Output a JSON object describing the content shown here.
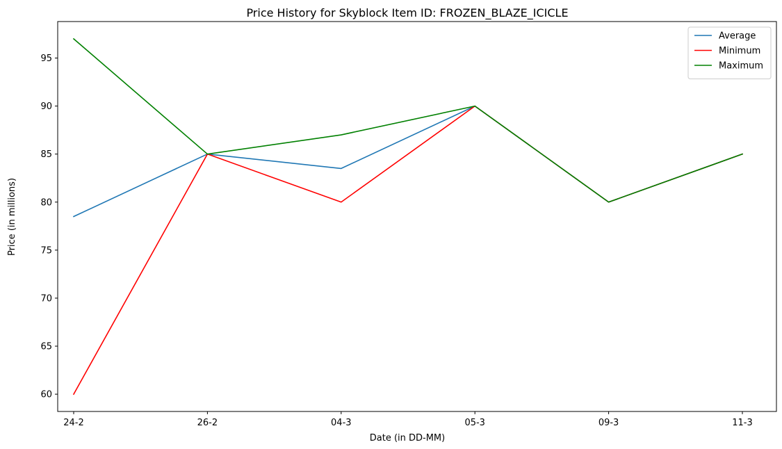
{
  "chart_data": {
    "type": "line",
    "title": "Price History for Skyblock Item ID: FROZEN_BLAZE_ICICLE",
    "xlabel": "Date (in DD-MM)",
    "ylabel": "Price (in millions)",
    "categories": [
      "24-2",
      "26-2",
      "04-3",
      "05-3",
      "09-3",
      "11-3"
    ],
    "ylim": [
      58.2,
      98.8
    ],
    "yticks": [
      60,
      65,
      70,
      75,
      80,
      85,
      90,
      95
    ],
    "grid": false,
    "legend_position": "top-right",
    "series": [
      {
        "name": "Average",
        "color": "#1f77b4",
        "values": [
          78.5,
          85,
          83.5,
          90,
          80,
          85
        ]
      },
      {
        "name": "Minimum",
        "color": "#ff0000",
        "values": [
          60,
          85,
          80,
          90,
          80,
          85
        ]
      },
      {
        "name": "Maximum",
        "color": "#008000",
        "values": [
          97,
          85,
          87,
          90,
          80,
          85
        ]
      }
    ]
  }
}
